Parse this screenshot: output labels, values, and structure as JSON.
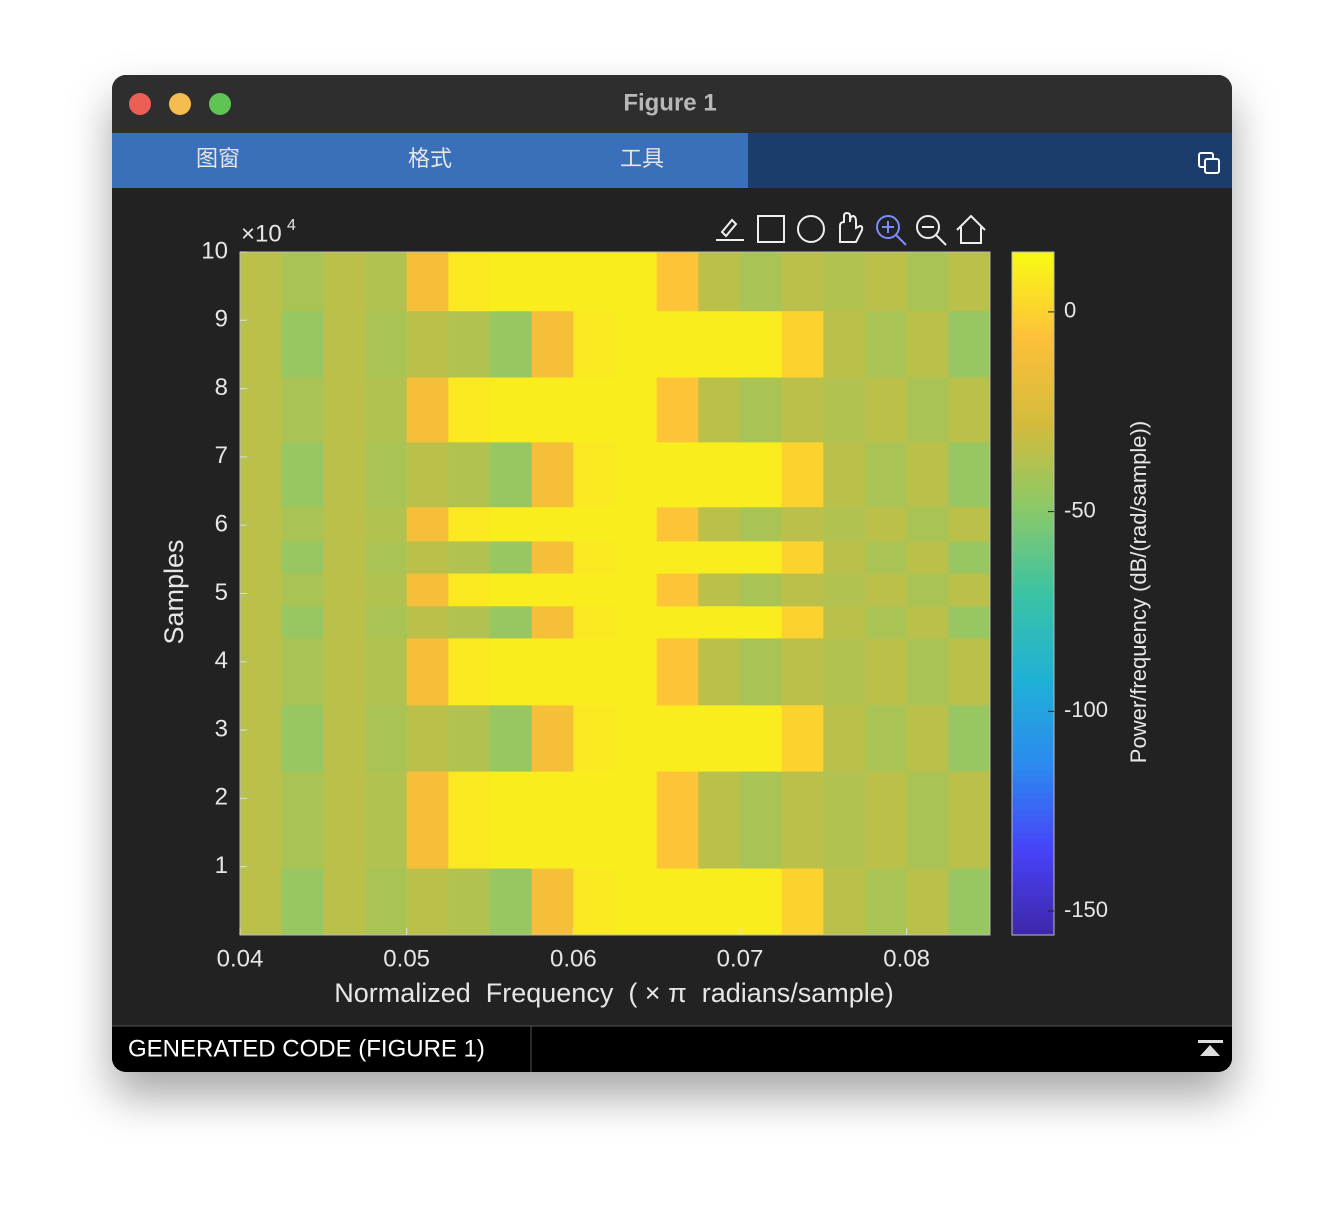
{
  "window": {
    "title": "Figure 1"
  },
  "menu": [
    "图窗",
    "格式",
    "工具"
  ],
  "status_bar": {
    "label": "GENERATED CODE (FIGURE 1)"
  },
  "chart_data": {
    "type": "heatmap",
    "xlabel": "Normalized  Frequency  ( × π  radians/sample)",
    "ylabel": "Samples",
    "y_multiplier": {
      "base": "×10",
      "exponent": "4"
    },
    "xlim": [
      0.04,
      0.085
    ],
    "ylim": [
      0,
      10
    ],
    "xticks": [
      0.04,
      0.05,
      0.06,
      0.07,
      0.08
    ],
    "yticks": [
      1,
      2,
      3,
      4,
      5,
      6,
      7,
      8,
      9,
      10
    ],
    "x_edges": [
      0.04,
      0.0425,
      0.045,
      0.0475,
      0.05,
      0.0525,
      0.055,
      0.0575,
      0.06,
      0.0625,
      0.065,
      0.0675,
      0.07,
      0.0725,
      0.075,
      0.0775,
      0.08,
      0.0825,
      0.085
    ],
    "y_edges": [
      0,
      0.98,
      2.4,
      3.37,
      4.35,
      4.82,
      5.3,
      5.77,
      6.27,
      7.22,
      8.17,
      9.14,
      10
    ],
    "values": [
      [
        -35,
        -45,
        -35,
        -40,
        -35,
        -38,
        -45,
        -10,
        8,
        10,
        10,
        10,
        10,
        0,
        -35,
        -40,
        -35,
        -45
      ],
      [
        -35,
        -40,
        -35,
        -38,
        -10,
        8,
        10,
        10,
        10,
        10,
        -5,
        -35,
        -40,
        -35,
        -38,
        -35,
        -40,
        -35
      ],
      [
        -35,
        -45,
        -35,
        -40,
        -35,
        -38,
        -45,
        -10,
        8,
        10,
        10,
        10,
        10,
        0,
        -35,
        -40,
        -35,
        -45
      ],
      [
        -35,
        -40,
        -35,
        -38,
        -10,
        8,
        10,
        10,
        10,
        10,
        -5,
        -35,
        -40,
        -35,
        -38,
        -35,
        -40,
        -35
      ],
      [
        -35,
        -45,
        -35,
        -40,
        -35,
        -38,
        -45,
        -10,
        8,
        10,
        10,
        10,
        10,
        0,
        -35,
        -40,
        -35,
        -45
      ],
      [
        -35,
        -40,
        -35,
        -38,
        -10,
        8,
        10,
        10,
        10,
        10,
        -5,
        -35,
        -40,
        -35,
        -38,
        -35,
        -40,
        -35
      ],
      [
        -35,
        -45,
        -35,
        -40,
        -35,
        -38,
        -45,
        -10,
        8,
        10,
        10,
        10,
        10,
        0,
        -35,
        -40,
        -35,
        -45
      ],
      [
        -35,
        -40,
        -35,
        -38,
        -10,
        8,
        10,
        10,
        10,
        10,
        -5,
        -35,
        -40,
        -35,
        -38,
        -35,
        -40,
        -35
      ],
      [
        -35,
        -45,
        -35,
        -40,
        -35,
        -38,
        -45,
        -10,
        8,
        10,
        10,
        10,
        10,
        0,
        -35,
        -40,
        -35,
        -45
      ],
      [
        -35,
        -40,
        -35,
        -38,
        -10,
        8,
        10,
        10,
        10,
        10,
        -5,
        -35,
        -40,
        -35,
        -38,
        -35,
        -40,
        -35
      ],
      [
        -35,
        -45,
        -35,
        -40,
        -35,
        -38,
        -45,
        -10,
        8,
        10,
        10,
        10,
        10,
        0,
        -35,
        -40,
        -35,
        -45
      ],
      [
        -35,
        -40,
        -35,
        -38,
        -10,
        8,
        10,
        10,
        10,
        10,
        -5,
        -35,
        -40,
        -35,
        -38,
        -35,
        -40,
        -35
      ]
    ],
    "colorbar": {
      "label": "Power/frequency (dB/(rad/sample))",
      "clim": [
        -156,
        15
      ],
      "ticks": [
        -150,
        -100,
        -50,
        0
      ],
      "colormap": [
        "#3e26a8",
        "#4743f8",
        "#2c8aef",
        "#1fb1d6",
        "#3bc3a4",
        "#8ac968",
        "#d4bb3c",
        "#fdc03a",
        "#f9fb15"
      ]
    }
  }
}
